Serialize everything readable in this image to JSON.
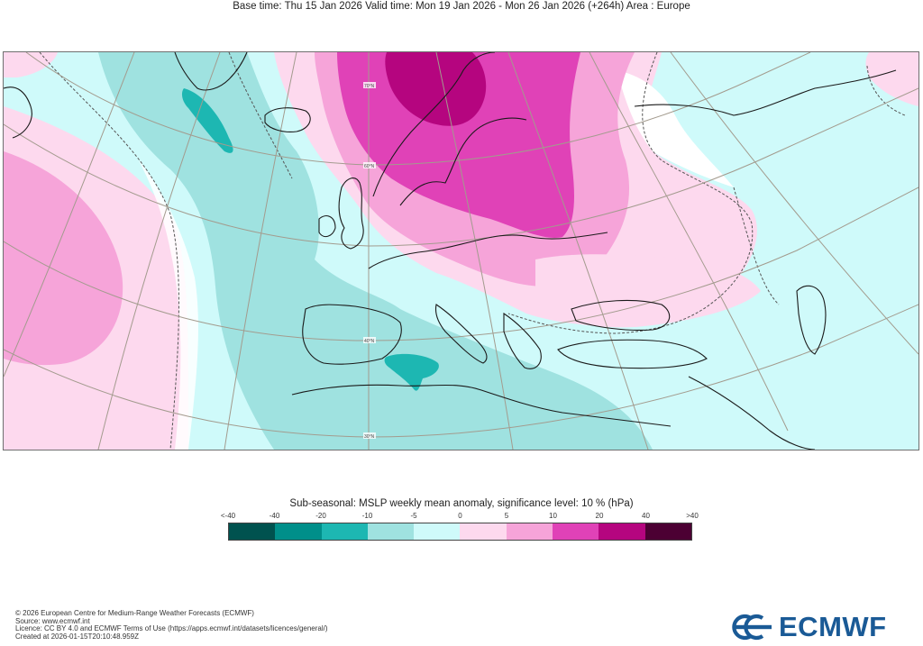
{
  "header": {
    "title": "Base time: Thu 15 Jan 2026 Valid time: Mon 19 Jan 2026 - Mon 26 Jan 2026 (+264h) Area : Europe"
  },
  "map": {
    "lat_labels": [
      "70°N",
      "60°N",
      "40°N",
      "30°N"
    ],
    "colors": {
      "neg40": "#00524f",
      "neg20": "#008f8a",
      "neg10": "#1db7b2",
      "neg5": "#9fe2e0",
      "neg0": "#cffafa",
      "pos0": "#fdd9ee",
      "pos5": "#f6a4d9",
      "pos10": "#e042b7",
      "pos20": "#b5057f",
      "pos40": "#4c0033",
      "coast": "#1a1a1a",
      "grid": "#a39b8e",
      "contour": "#555555"
    }
  },
  "legend": {
    "title": "Sub-seasonal: MSLP weekly mean anomaly, significance level: 10 % (hPa)",
    "ticks": [
      "<-40",
      "-40",
      "-20",
      "-10",
      "-5",
      "0",
      "5",
      "10",
      "20",
      "40",
      ">40"
    ],
    "colors": [
      "#00524f",
      "#008f8a",
      "#1db7b2",
      "#9fe2e0",
      "#cffafa",
      "#fdd9ee",
      "#f6a4d9",
      "#e042b7",
      "#b5057f",
      "#4c0033"
    ]
  },
  "footer": {
    "line1": "© 2026 European Centre for Medium-Range Weather Forecasts (ECMWF)",
    "line2": "Source: www.ecmwf.int",
    "line3": "Licence: CC BY 4.0 and ECMWF Terms of Use (https://apps.ecmwf.int/datasets/licences/general/)",
    "line4": "Created at 2026-01-15T20:10:48.959Z"
  },
  "logo": {
    "text": "ECMWF",
    "icon": "ecmwf-logo-icon",
    "color": "#1a5a96"
  }
}
